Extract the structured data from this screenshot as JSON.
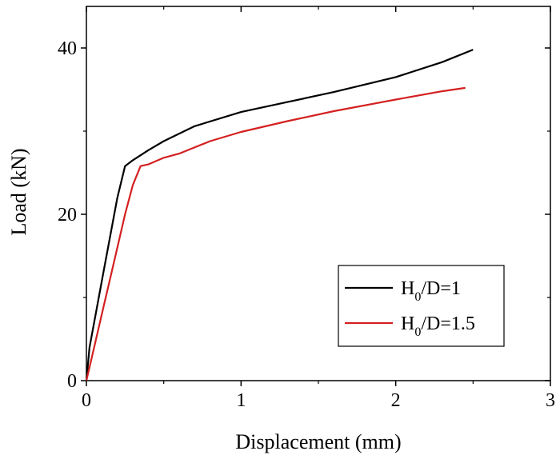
{
  "chart_data": {
    "type": "line",
    "title": "",
    "xlabel": "Displacement (mm)",
    "ylabel": "Load (kN)",
    "xlim": [
      0,
      3
    ],
    "ylim": [
      0,
      45
    ],
    "xticks": [
      "0",
      "1",
      "2",
      "3"
    ],
    "yticks": [
      "0",
      "20",
      "40"
    ],
    "grid": false,
    "legend_position": "bottom-right",
    "colors": {
      "axis": "#000000"
    },
    "series": [
      {
        "label_main": "H",
        "label_sub": "0",
        "label_rest": "/D=1",
        "color": "#000000",
        "x": [
          0,
          0.02,
          0.05,
          0.1,
          0.15,
          0.2,
          0.25,
          0.3,
          0.4,
          0.5,
          0.7,
          1.0,
          1.3,
          1.6,
          2.0,
          2.3,
          2.5
        ],
        "y": [
          0,
          4,
          7,
          12,
          17,
          22,
          25.8,
          26.5,
          27.7,
          28.8,
          30.6,
          32.3,
          33.5,
          34.7,
          36.5,
          38.3,
          39.8
        ]
      },
      {
        "label_main": "H",
        "label_sub": "0",
        "label_rest": "/D=1.5",
        "color": "#d42020",
        "x": [
          0,
          0.05,
          0.1,
          0.15,
          0.2,
          0.25,
          0.3,
          0.35,
          0.4,
          0.5,
          0.6,
          0.8,
          1.0,
          1.3,
          1.6,
          2.0,
          2.3,
          2.45
        ],
        "y": [
          0,
          4,
          8,
          12,
          16,
          20,
          23.5,
          25.8,
          26.0,
          26.8,
          27.3,
          28.8,
          29.9,
          31.2,
          32.4,
          33.8,
          34.8,
          35.2
        ]
      }
    ]
  }
}
